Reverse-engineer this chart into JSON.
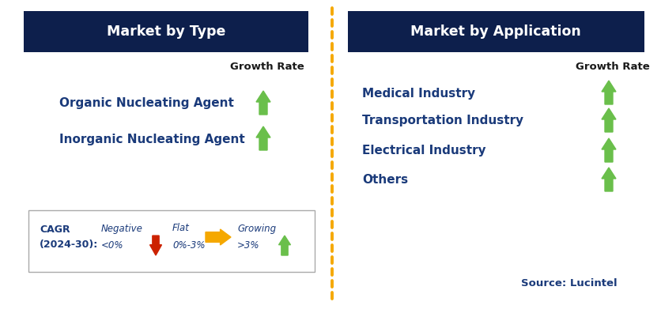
{
  "bg_color": "#ffffff",
  "header_bg": "#0d1f4c",
  "header_text_color": "#ffffff",
  "item_text_color": "#1a3a7a",
  "growth_rate_color": "#1a1a1a",
  "green_arrow_color": "#6abf4b",
  "red_arrow_color": "#cc2200",
  "orange_arrow_color": "#f5a800",
  "dashed_line_color": "#f5a800",
  "left_panel_title": "Market by Type",
  "right_panel_title": "Market by Application",
  "left_items": [
    "Organic Nucleating Agent",
    "Inorganic Nucleating Agent"
  ],
  "right_items": [
    "Medical Industry",
    "Transportation Industry",
    "Electrical Industry",
    "Others"
  ],
  "growth_rate_label": "Growth Rate",
  "negative_label": "Negative",
  "negative_range": "<0%",
  "flat_label": "Flat",
  "flat_range": "0%-3%",
  "growing_label": "Growing",
  "growing_range": ">3%",
  "source_text": "Source: Lucintel"
}
